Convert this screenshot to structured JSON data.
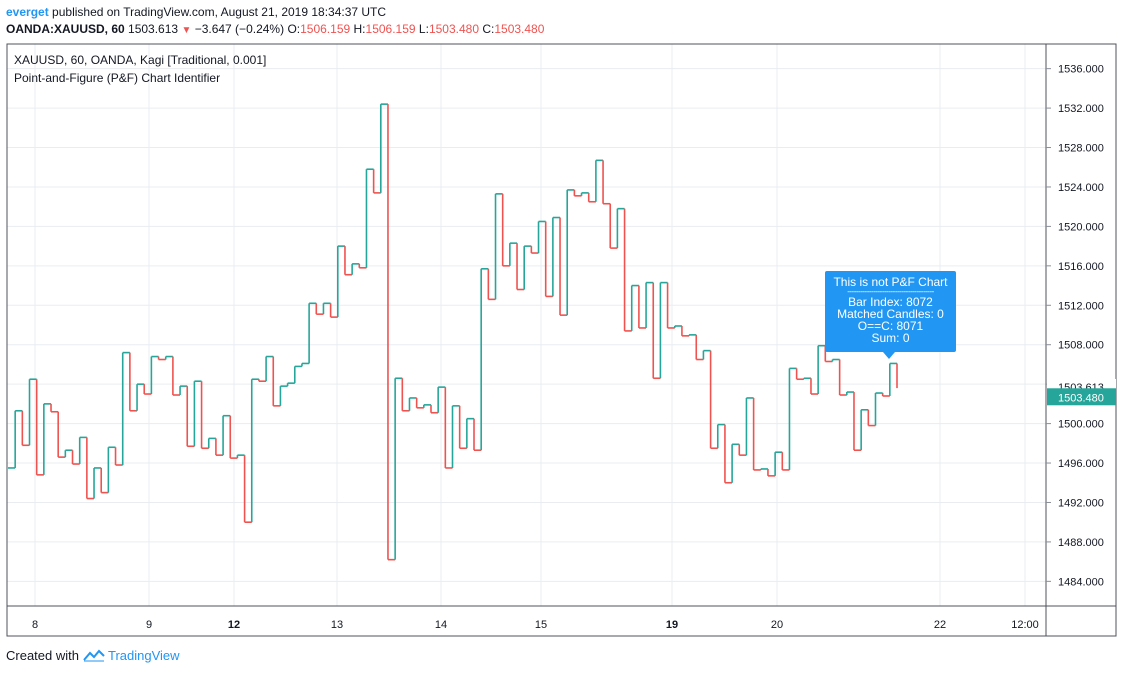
{
  "header": {
    "author": "everget",
    "published_text": "published on TradingView.com, August 21, 2019 18:34:37 UTC"
  },
  "ohlc": {
    "symbol": "OANDA:XAUUSD, 60",
    "last": "1503.613",
    "change": "−3.647 (−0.24%)",
    "o_label": "O:",
    "o_value": "1506.159",
    "h_label": "H:",
    "h_value": "1506.159",
    "l_label": "L:",
    "l_value": "1503.480",
    "c_label": "C:",
    "c_value": "1503.480"
  },
  "legend": {
    "series_title": "XAUUSD, 60, OANDA, Kagi [Traditional, 0.001]",
    "indicator_title": "Point-and-Figure (P&F) Chart Identifier"
  },
  "tooltip": {
    "title": "This is not P&F Chart",
    "separator": "----------------------------------------",
    "line1": "Bar Index: 8072",
    "line2": "Matched Candles: 0",
    "line3": "O==C: 8071",
    "line4": "Sum: 0"
  },
  "footer": {
    "created_with": "Created with",
    "brand": "TradingView"
  },
  "colors": {
    "up": "#26a69a",
    "down": "#ef5350",
    "grid": "#e9edf1",
    "axis_text": "#131722",
    "price_label_up_bg": "#26a69a",
    "price_label_last_bg": "#ffffff"
  },
  "chart_data": {
    "type": "line",
    "style": "kagi",
    "ylim": [
      1481.5,
      1538.5
    ],
    "yticks": [
      1536,
      1532,
      1528,
      1524,
      1520,
      1516,
      1512,
      1508,
      1504,
      1500,
      1496,
      1492,
      1488,
      1484
    ],
    "ytick_labels": [
      "1536.000",
      "1532.000",
      "1528.000",
      "1524.000",
      "1520.000",
      "1516.000",
      "1512.000",
      "1508.000",
      "1504.000",
      "1500.000",
      "1496.000",
      "1492.000",
      "1488.000",
      "1484.000"
    ],
    "xticks": [
      {
        "label": "8",
        "bold": false
      },
      {
        "label": "9",
        "bold": false
      },
      {
        "label": "12",
        "bold": true
      },
      {
        "label": "13",
        "bold": false
      },
      {
        "label": "14",
        "bold": false
      },
      {
        "label": "15",
        "bold": false
      },
      {
        "label": "19",
        "bold": true
      },
      {
        "label": "20",
        "bold": false
      },
      {
        "label": "22",
        "bold": false
      },
      {
        "label": "12:00",
        "bold": false
      }
    ],
    "price_labels": [
      {
        "value": 1503.613,
        "text": "1503.613",
        "style": "last"
      },
      {
        "value": 1503.48,
        "text": "1503.480",
        "style": "up"
      }
    ],
    "kagi_values": [
      1495.5,
      1501.3,
      1497.8,
      1504.5,
      1494.8,
      1502.0,
      1501.2,
      1496.6,
      1497.3,
      1495.9,
      1498.6,
      1492.4,
      1495.5,
      1493.0,
      1497.6,
      1495.8,
      1507.2,
      1501.3,
      1504.0,
      1503.0,
      1506.8,
      1506.5,
      1506.8,
      1502.9,
      1503.8,
      1497.7,
      1504.3,
      1497.5,
      1498.5,
      1496.8,
      1500.8,
      1496.5,
      1496.8,
      1490.0,
      1504.5,
      1504.3,
      1506.8,
      1501.8,
      1503.8,
      1504.1,
      1505.8,
      1506.1,
      1512.2,
      1511.1,
      1512.2,
      1510.8,
      1518.0,
      1515.1,
      1516.2,
      1515.8,
      1525.8,
      1523.4,
      1532.4,
      1486.2,
      1504.6,
      1501.3,
      1502.6,
      1501.6,
      1501.9,
      1501.1,
      1503.7,
      1495.5,
      1501.8,
      1497.5,
      1500.5,
      1497.3,
      1515.7,
      1512.6,
      1523.3,
      1516.0,
      1518.3,
      1513.6,
      1518.0,
      1517.3,
      1520.5,
      1512.9,
      1520.9,
      1511.0,
      1523.7,
      1523.1,
      1523.4,
      1522.5,
      1526.7,
      1522.3,
      1517.8,
      1521.8,
      1509.4,
      1514.0,
      1509.7,
      1514.3,
      1504.6,
      1514.3,
      1509.7,
      1509.9,
      1508.9,
      1509.0,
      1506.5,
      1507.4,
      1497.5,
      1499.9,
      1494.0,
      1497.9,
      1496.8,
      1502.6,
      1495.3,
      1495.4,
      1494.7,
      1497.1,
      1495.3,
      1505.6,
      1504.5,
      1504.6,
      1503.0,
      1507.9,
      1506.3,
      1506.5,
      1502.9,
      1503.2,
      1497.3,
      1501.4,
      1499.8,
      1503.1,
      1502.8,
      1506.1,
      1503.6
    ]
  }
}
